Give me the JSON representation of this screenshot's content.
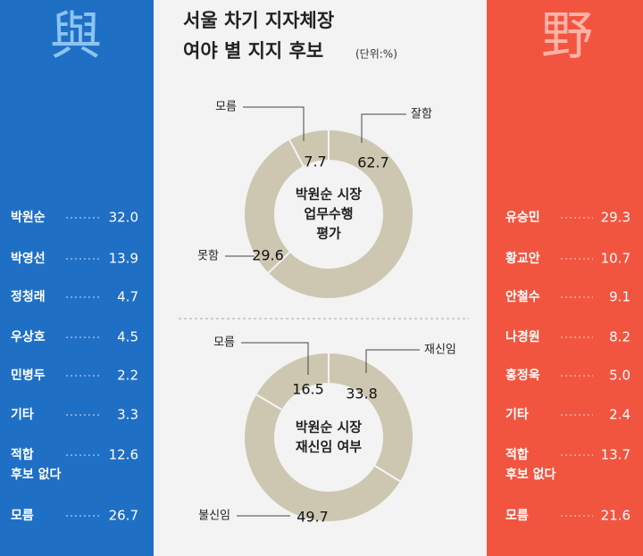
{
  "title_lines": [
    "서울 차기 지자체장",
    "여야 별 지지 후보"
  ],
  "unit": "(단위:%)",
  "ruling": {
    "symbol": "與",
    "rows": [
      {
        "name": "박원순",
        "value": "32.0"
      },
      {
        "name": "박영선",
        "value": "13.9"
      },
      {
        "name": "정청래",
        "value": "4.7"
      },
      {
        "name": "우상호",
        "value": "4.5"
      },
      {
        "name": "민병두",
        "value": "2.2"
      },
      {
        "name": "기타",
        "value": "3.3"
      },
      {
        "name": [
          "적합",
          "후보 없다"
        ],
        "value": "12.6"
      },
      {
        "name": "모름",
        "value": "26.7"
      }
    ]
  },
  "opposition": {
    "symbol": "野",
    "rows": [
      {
        "name": "유승민",
        "value": "29.3"
      },
      {
        "name": "황교안",
        "value": "10.7"
      },
      {
        "name": "안철수",
        "value": "9.1"
      },
      {
        "name": "나경원",
        "value": "8.2"
      },
      {
        "name": "홍정욱",
        "value": "5.0"
      },
      {
        "name": "기타",
        "value": "2.4"
      },
      {
        "name": [
          "적합",
          "후보 없다"
        ],
        "value": "13.7"
      },
      {
        "name": "모름",
        "value": "21.6"
      }
    ]
  },
  "chart_data": [
    {
      "type": "donut",
      "title_lines": [
        "박원순 시장",
        "업무수행",
        "평가"
      ],
      "categories": [
        "잘함",
        "못함",
        "모름"
      ],
      "values": [
        62.7,
        29.6,
        7.7
      ],
      "color": "#cdc7b1"
    },
    {
      "type": "donut",
      "title_lines": [
        "박원순 시장",
        "재신임 여부"
      ],
      "categories": [
        "재신임",
        "불신임",
        "모름"
      ],
      "values": [
        33.8,
        49.7,
        16.5
      ],
      "color": "#cdc7b1"
    }
  ]
}
